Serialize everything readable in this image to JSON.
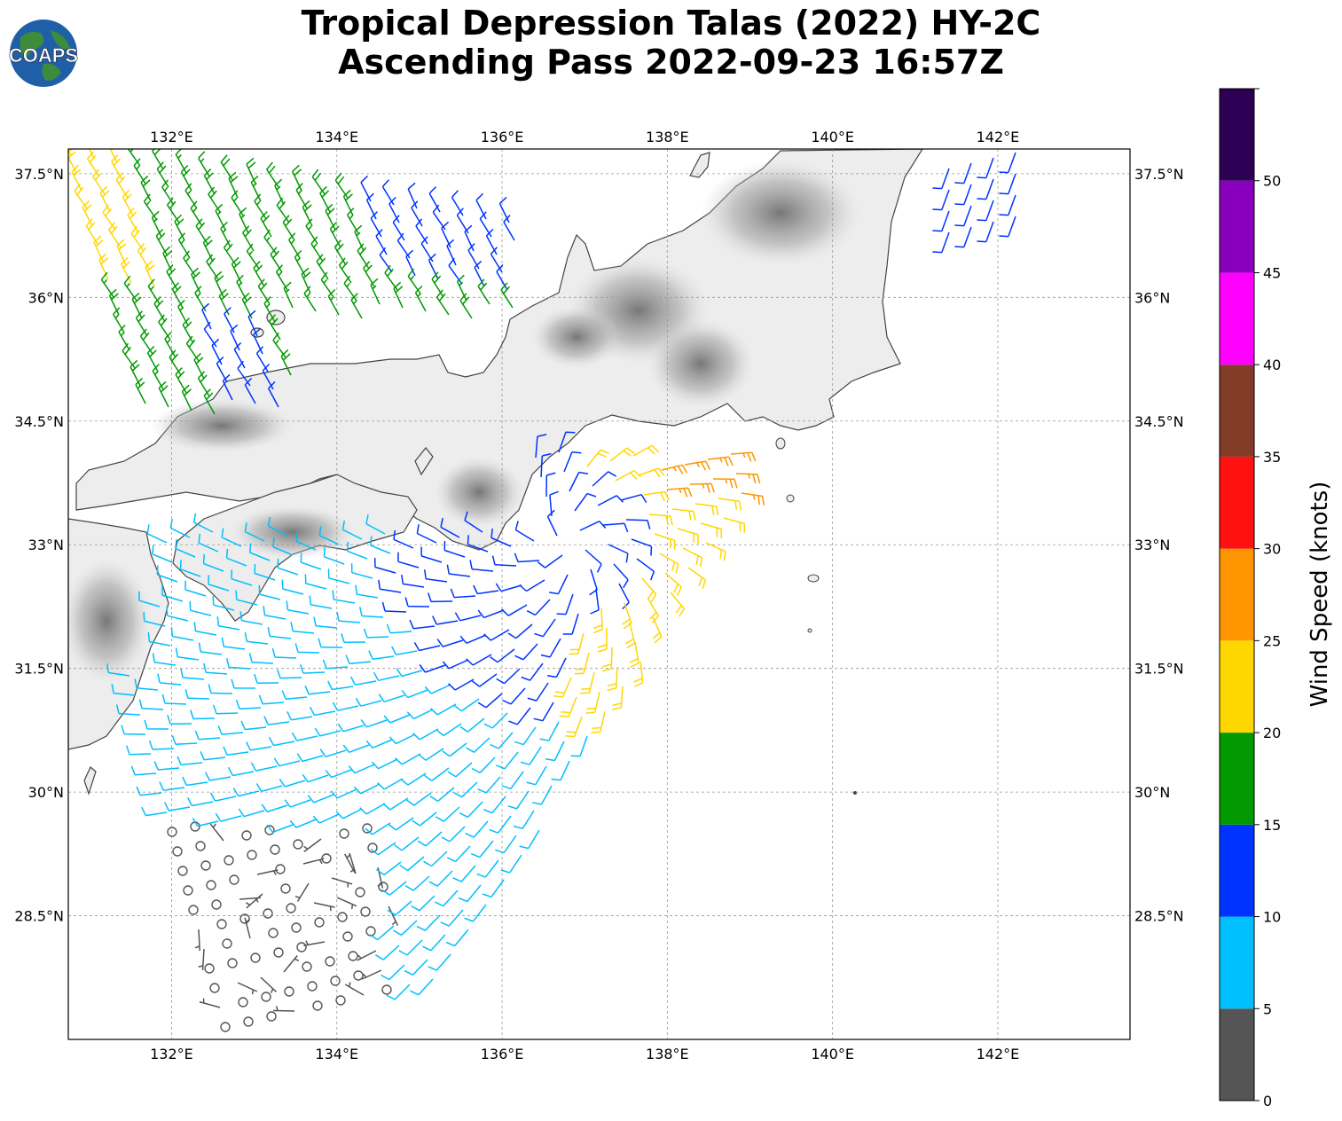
{
  "title": {
    "line1": "Tropical Depression Talas (2022) HY-2C",
    "line2": "Ascending Pass 2022-09-23 16:57Z"
  },
  "logo": {
    "text": "COAPS",
    "icon": "globe-logo"
  },
  "map": {
    "lon_range": [
      130.75,
      143.6
    ],
    "lat_range": [
      27.0,
      37.8
    ],
    "lon_ticks": [
      132,
      134,
      136,
      138,
      140,
      142
    ],
    "lat_ticks": [
      37.5,
      36,
      34.5,
      33,
      31.5,
      30,
      28.5
    ],
    "lon_labels": [
      "132°E",
      "134°E",
      "136°E",
      "138°E",
      "140°E",
      "142°E"
    ],
    "lat_labels": [
      "37.5°N",
      "36°N",
      "34.5°N",
      "33°N",
      "31.5°N",
      "30°N",
      "28.5°N"
    ],
    "grid": true,
    "land_color": "#f0f0f0",
    "coast_color": "#444444"
  },
  "colorbar": {
    "label": "Wind Speed (knots)",
    "bounds": [
      0,
      5,
      10,
      15,
      20,
      25,
      30,
      35,
      40,
      45,
      50,
      55
    ],
    "tick_labels": [
      "0",
      "5",
      "10",
      "15",
      "20",
      "25",
      "30",
      "35",
      "40",
      "45",
      "50"
    ],
    "colors": [
      "#555555",
      "#00bfff",
      "#0033ff",
      "#009900",
      "#ffd700",
      "#ff9500",
      "#ff1111",
      "#833c28",
      "#ff00ff",
      "#8800bb",
      "#2d0055"
    ]
  },
  "chart_data": {
    "type": "wind_barbs",
    "units": "knots",
    "regions": [
      {
        "region": "northwest Sea of Japan swath",
        "lon": [
          130.8,
          136.1
        ],
        "lat": [
          35.0,
          37.8
        ],
        "speed_range_kt": [
          10,
          25
        ],
        "dominant_kt": 17,
        "direction_from_deg": 330
      },
      {
        "region": "northeast near 141-142E",
        "lon": [
          141.3,
          142.4
        ],
        "lat": [
          37.0,
          37.8
        ],
        "speed_range_kt": [
          10,
          15
        ],
        "dominant_kt": 12,
        "direction_from_deg": 200
      },
      {
        "region": "cyclonic core south of Kii",
        "center_lon": 136.8,
        "center_lat": 33.0,
        "speed_range_kt": [
          10,
          30
        ],
        "max_kt": 27,
        "max_location": [
          138.2,
          34.2
        ]
      },
      {
        "region": "southwest calm area",
        "lon": [
          130.8,
          134.8
        ],
        "lat": [
          27.0,
          29.5
        ],
        "speed_range_kt": [
          0,
          5
        ],
        "calm_circles": true
      }
    ]
  }
}
